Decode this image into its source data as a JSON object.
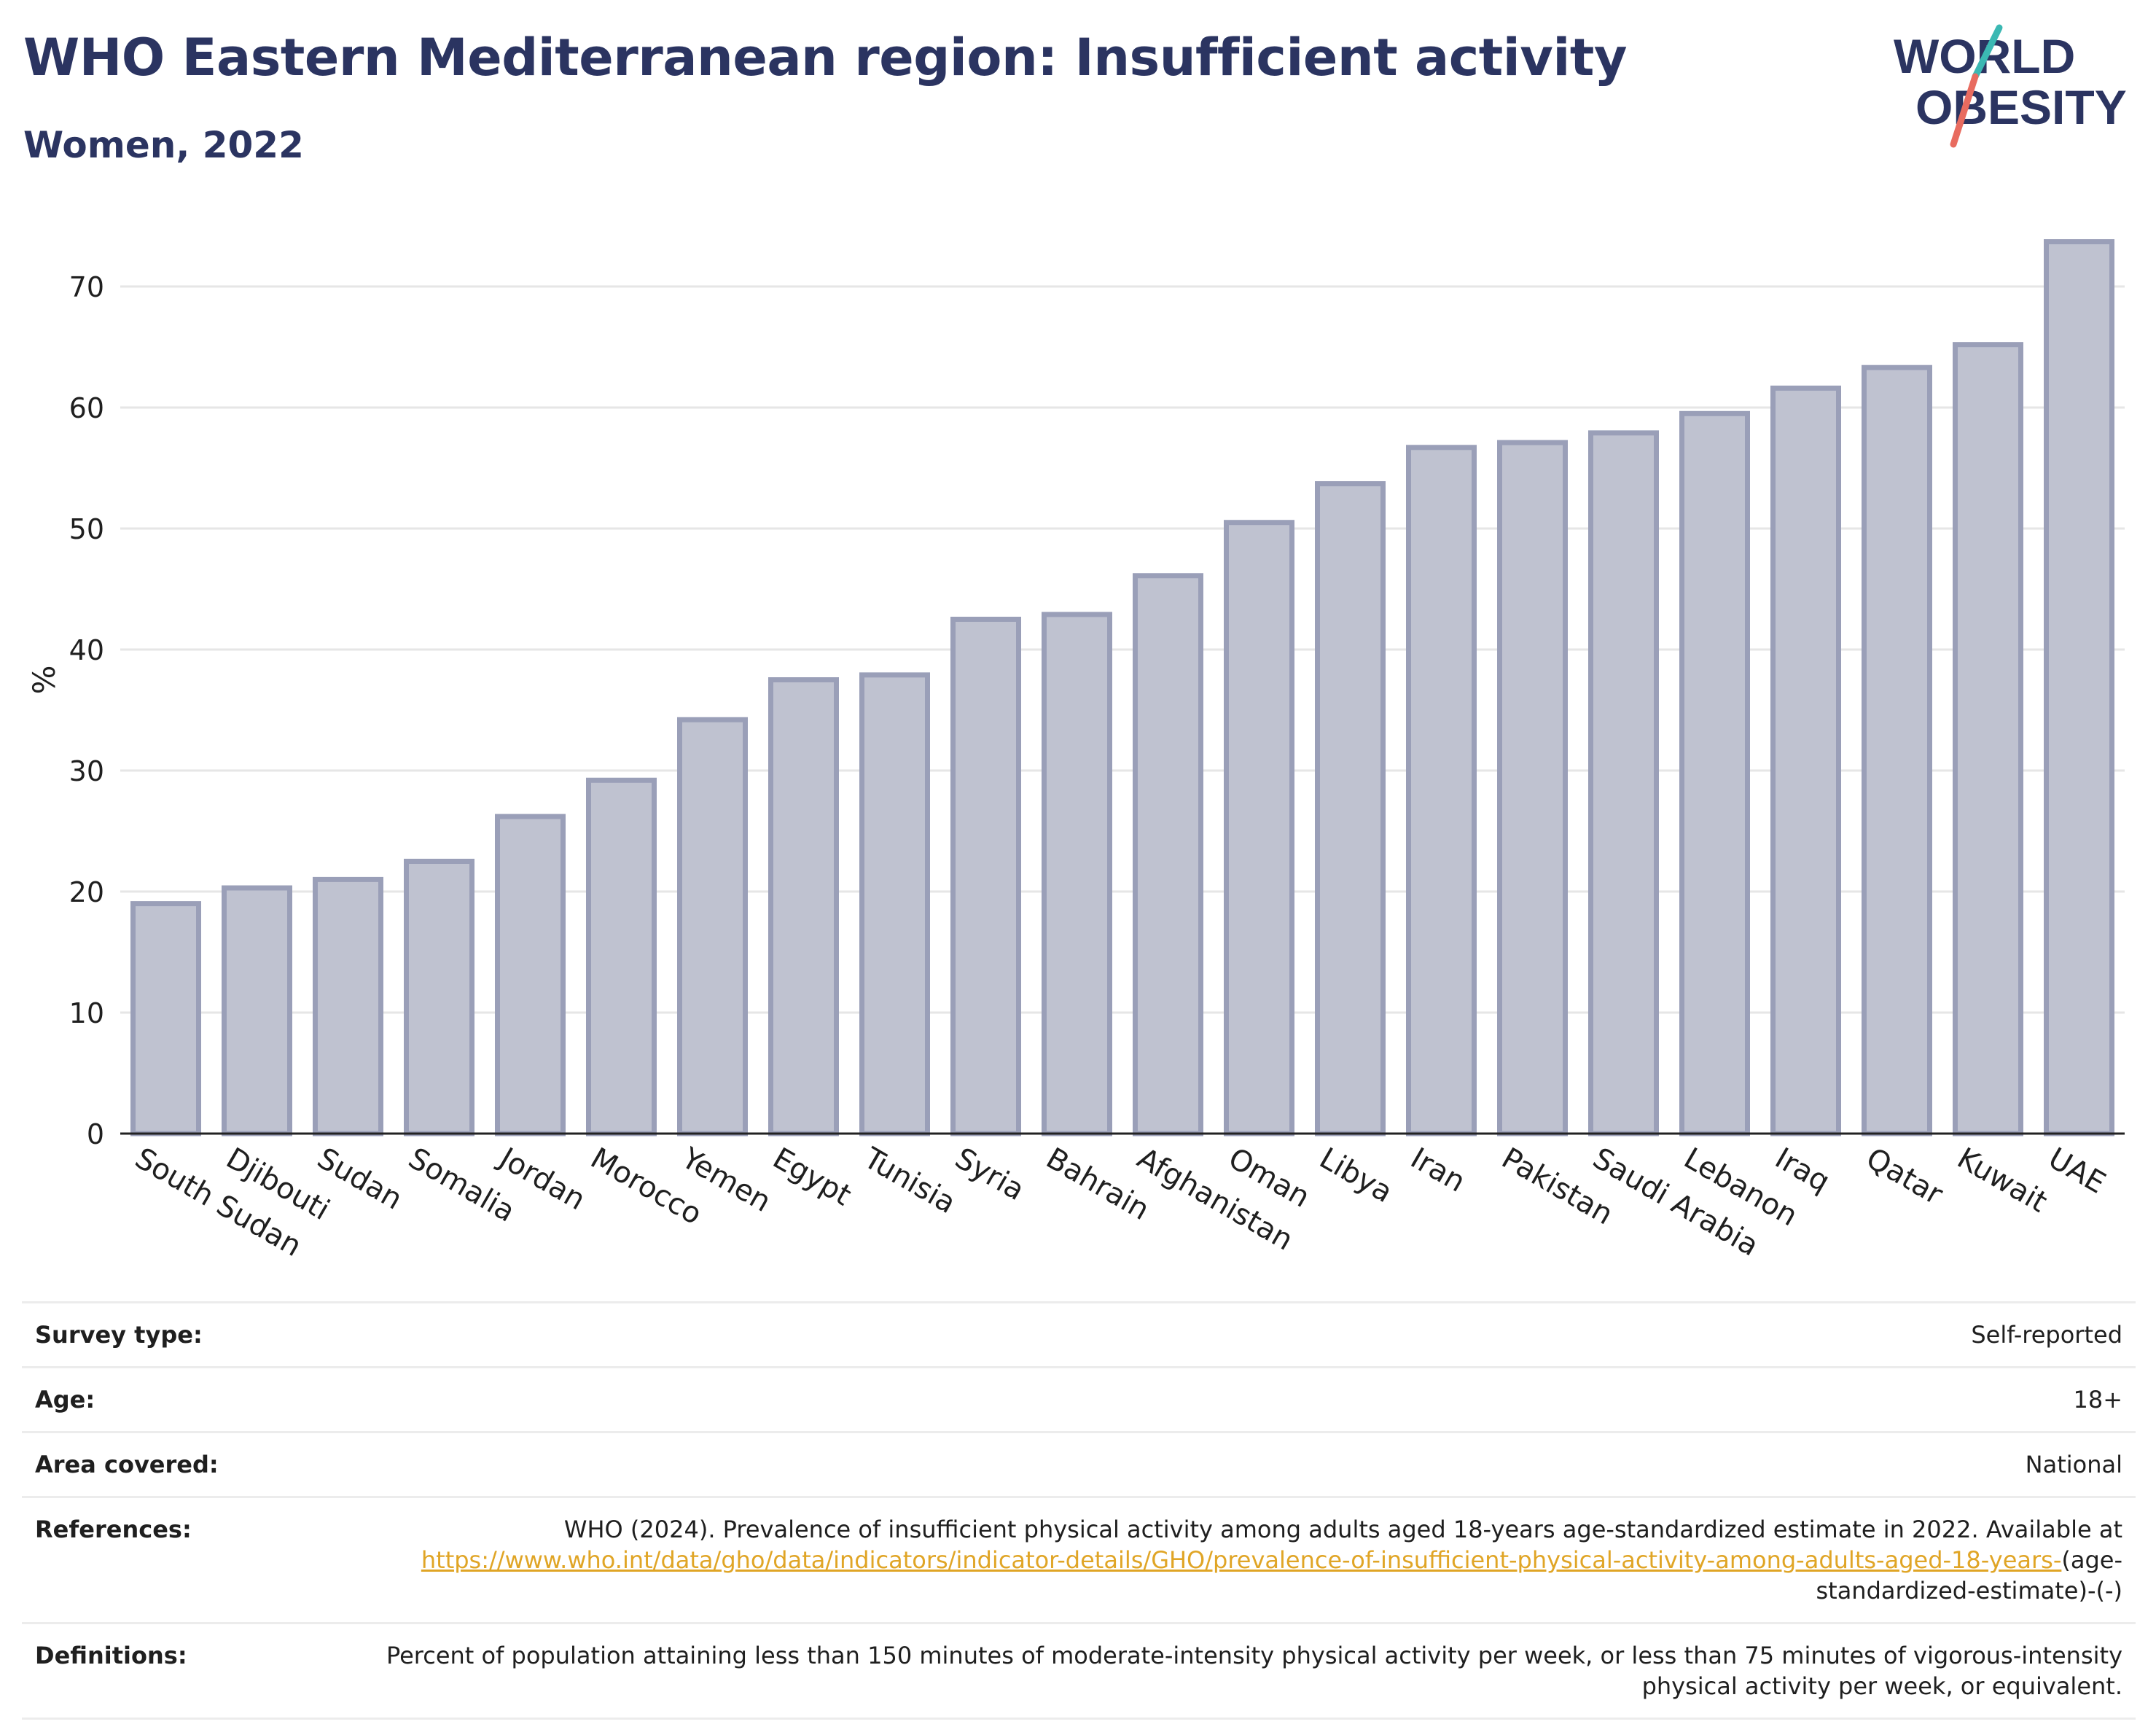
{
  "header": {
    "title": "WHO Eastern Mediterranean region: Insufficient activity",
    "subtitle": "Women, 2022"
  },
  "logo": {
    "line1": "WORLD",
    "line2": "OBESITY",
    "colors": [
      "#2b3461",
      "#3bb8b3",
      "#e86b5f"
    ]
  },
  "chart_data": {
    "type": "bar",
    "ylabel": "%",
    "ylim": [
      0,
      75
    ],
    "yticks": [
      0,
      10,
      20,
      30,
      40,
      50,
      60,
      70
    ],
    "grid": true,
    "bar_color": "#bfc2d0",
    "bar_edge_color": "#9a9fb8",
    "categories": [
      "South Sudan",
      "Djibouti",
      "Sudan",
      "Somalia",
      "Jordan",
      "Morocco",
      "Yemen",
      "Egypt",
      "Tunisia",
      "Syria",
      "Bahrain",
      "Afghanistan",
      "Oman",
      "Libya",
      "Iran",
      "Pakistan",
      "Saudi Arabia",
      "Lebanon",
      "Iraq",
      "Qatar",
      "Kuwait",
      "UAE"
    ],
    "values": [
      19.0,
      20.3,
      21.0,
      22.5,
      26.2,
      29.2,
      34.2,
      37.5,
      37.9,
      42.5,
      42.9,
      46.1,
      50.5,
      53.7,
      56.7,
      57.1,
      57.9,
      59.5,
      61.6,
      63.3,
      65.2,
      73.7
    ]
  },
  "meta": {
    "survey_type": {
      "label": "Survey type:",
      "value": "Self-reported"
    },
    "age": {
      "label": "Age:",
      "value": "18+"
    },
    "area": {
      "label": "Area covered:",
      "value": "National"
    },
    "references": {
      "label": "References:",
      "text": "WHO (2024). Prevalence of insufficient physical activity among adults aged 18-years age-standardized estimate in 2022. Available at",
      "link": "https://www.who.int/data/gho/data/indicators/indicator-details/GHO/prevalence-of-insufficient-physical-activity-among-adults-aged-18-years-",
      "suffix": "(age-standardized-estimate)-(-)"
    },
    "definitions": {
      "label": "Definitions:",
      "value": "Percent of population attaining less than 150 minutes of moderate-intensity physical activity per week, or less than 75 minutes of vigorous-intensity physical activity per week, or equivalent."
    }
  }
}
